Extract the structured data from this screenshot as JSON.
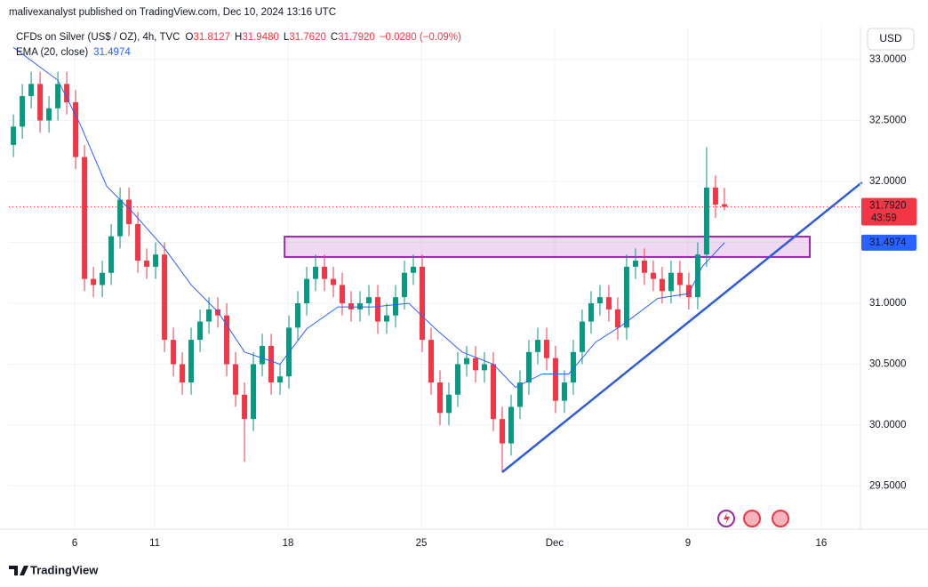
{
  "header": {
    "publisher": "malivexanalyst published on TradingView.com, Dec 10, 2024 13:16 UTC",
    "currency_button": "USD",
    "brand": "TradingView"
  },
  "chart_data": {
    "type": "candlestick",
    "title": "CFDs on Silver (US$ / OZ), 4h, TVC",
    "ohlc_legend": [
      {
        "label": "O",
        "value": "31.8127"
      },
      {
        "label": "H",
        "value": "31.9480"
      },
      {
        "label": "L",
        "value": "31.7620"
      },
      {
        "label": "C",
        "value": "31.7920"
      }
    ],
    "change": "−0.0280 (−0.09%)",
    "up_color": "#089981",
    "down_color": "#f23645",
    "x": [
      0.7,
      1.0333,
      1.3667,
      1.7,
      2.0333,
      2.3667,
      2.7,
      3.0333,
      3.3667,
      3.7,
      4.0333,
      4.3667,
      4.7,
      5.0333,
      5.3667,
      5.7,
      6.0333,
      6.3667,
      6.7,
      7.0333,
      7.3667,
      7.7,
      8.0333,
      8.3667,
      8.7,
      9.0333,
      9.3667,
      9.7,
      10.0333,
      10.3667,
      10.7,
      11.0333,
      11.3667,
      11.7,
      12.0333,
      12.3667,
      12.7,
      13.0333,
      13.3667,
      13.7,
      14.0333,
      14.3667,
      14.7,
      15.0333,
      15.3667,
      15.7,
      16.0333,
      16.3667,
      16.7,
      17.0333,
      17.3667,
      17.7,
      18.0333,
      18.3667,
      18.7,
      19.0333,
      19.3667,
      19.7,
      20.0333,
      20.3667,
      20.7,
      21.0333,
      21.3667,
      21.7,
      22.0333,
      22.3667,
      22.7,
      23.0333,
      23.3667,
      23.7,
      24.0333,
      24.3667,
      24.7,
      25.0333,
      25.3667,
      25.7,
      26.0333,
      26.3667,
      26.7,
      27.0333,
      27.3667
    ],
    "open": [
      32.3,
      32.45,
      32.7,
      32.8,
      32.5,
      32.6,
      32.8,
      32.65,
      32.2,
      31.2,
      31.15,
      31.25,
      31.55,
      31.85,
      31.65,
      31.35,
      31.3,
      31.4,
      30.7,
      30.5,
      30.35,
      30.7,
      30.85,
      30.95,
      30.9,
      30.5,
      30.25,
      30.05,
      30.5,
      30.65,
      30.35,
      30.4,
      30.8,
      31.0,
      31.2,
      31.3,
      31.2,
      31.15,
      31.0,
      30.95,
      31.0,
      31.05,
      30.85,
      30.9,
      31.05,
      31.25,
      31.3,
      30.7,
      30.35,
      30.1,
      30.25,
      30.5,
      30.55,
      30.45,
      30.5,
      30.05,
      29.85,
      30.15,
      30.35,
      30.6,
      30.7,
      30.55,
      30.2,
      30.35,
      30.6,
      30.85,
      31.0,
      31.05,
      30.95,
      30.8,
      31.3,
      31.35,
      31.25,
      31.2,
      31.1,
      31.25,
      31.15,
      31.05,
      31.4,
      31.95,
      31.8127
    ],
    "high": [
      32.55,
      32.8,
      32.9,
      32.9,
      32.7,
      32.9,
      32.9,
      32.75,
      32.3,
      31.3,
      31.35,
      31.65,
      31.95,
      31.95,
      31.75,
      31.45,
      31.5,
      31.5,
      30.8,
      30.6,
      30.8,
      30.95,
      31.05,
      31.05,
      31.0,
      30.6,
      30.35,
      30.6,
      30.75,
      30.75,
      30.5,
      30.9,
      31.1,
      31.3,
      31.4,
      31.4,
      31.3,
      31.25,
      31.1,
      31.1,
      31.15,
      31.15,
      31.0,
      31.15,
      31.35,
      31.4,
      31.4,
      30.8,
      30.45,
      30.35,
      30.6,
      30.65,
      30.65,
      30.6,
      30.6,
      30.15,
      30.25,
      30.45,
      30.7,
      30.8,
      30.8,
      30.65,
      30.45,
      30.7,
      30.95,
      31.1,
      31.15,
      31.15,
      31.05,
      31.4,
      31.45,
      31.45,
      31.35,
      31.3,
      31.35,
      31.35,
      31.25,
      31.5,
      32.28,
      32.05,
      31.948
    ],
    "low": [
      32.2,
      32.35,
      32.6,
      32.4,
      32.4,
      32.5,
      32.55,
      32.1,
      31.1,
      31.05,
      31.05,
      31.15,
      31.45,
      31.55,
      31.25,
      31.2,
      31.2,
      30.6,
      30.4,
      30.25,
      30.25,
      30.6,
      30.75,
      30.8,
      30.4,
      30.15,
      29.7,
      29.95,
      30.4,
      30.25,
      30.25,
      30.3,
      30.7,
      30.9,
      31.1,
      31.1,
      31.05,
      30.9,
      30.85,
      30.85,
      30.9,
      30.75,
      30.75,
      30.8,
      30.95,
      31.15,
      30.6,
      30.25,
      30.0,
      30.0,
      30.15,
      30.4,
      30.35,
      30.35,
      29.95,
      29.62,
      29.75,
      30.05,
      30.25,
      30.5,
      30.45,
      30.1,
      30.1,
      30.25,
      30.5,
      30.75,
      30.9,
      30.85,
      30.7,
      30.7,
      31.2,
      31.15,
      31.1,
      31.0,
      31.0,
      31.05,
      30.95,
      30.95,
      31.3,
      31.7,
      31.762
    ],
    "close": [
      32.45,
      32.7,
      32.8,
      32.5,
      32.6,
      32.8,
      32.65,
      32.2,
      31.2,
      31.15,
      31.25,
      31.55,
      31.85,
      31.65,
      31.35,
      31.3,
      31.4,
      30.7,
      30.5,
      30.35,
      30.7,
      30.85,
      30.95,
      30.9,
      30.5,
      30.25,
      30.05,
      30.5,
      30.65,
      30.35,
      30.4,
      30.8,
      31.0,
      31.2,
      31.3,
      31.2,
      31.15,
      31.0,
      30.95,
      31.0,
      31.05,
      30.85,
      30.9,
      31.05,
      31.25,
      31.3,
      30.7,
      30.35,
      30.1,
      30.25,
      30.5,
      30.55,
      30.45,
      30.5,
      30.05,
      29.85,
      30.15,
      30.35,
      30.6,
      30.7,
      30.55,
      30.2,
      30.35,
      30.6,
      30.85,
      31.0,
      31.05,
      30.95,
      30.8,
      31.3,
      31.35,
      31.25,
      31.2,
      31.1,
      31.25,
      31.15,
      31.05,
      31.4,
      31.95,
      31.81,
      31.792
    ],
    "ema": {
      "name": "EMA (20, close)",
      "last_label": "31.4974",
      "color": "#2962ff",
      "x": [
        0.7,
        2.37,
        3.2,
        4.2,
        5.2,
        6.37,
        7.37,
        8.37,
        9.37,
        10.7,
        11.7,
        12.87,
        14.2,
        15.53,
        16.53,
        17.53,
        18.7,
        19.53,
        20.53,
        21.53,
        22.53,
        23.53,
        24.87,
        26.03,
        26.53,
        27.37
      ],
      "values": [
        33.1,
        32.83,
        32.47,
        31.96,
        31.74,
        31.45,
        31.15,
        30.93,
        30.6,
        30.5,
        30.79,
        30.97,
        30.97,
        31.0,
        30.79,
        30.6,
        30.5,
        30.31,
        30.42,
        30.42,
        30.68,
        30.82,
        31.04,
        31.08,
        31.3,
        31.4974
      ]
    },
    "last_price": {
      "label": "31.7920",
      "value": 31.792,
      "countdown": "43:59"
    },
    "zone": {
      "x": [
        10.87,
        30.57
      ],
      "y": [
        31.38,
        31.547
      ],
      "fill": "rgba(206,147,216,0.35)",
      "stroke": "#9c27b0"
    },
    "trendline": {
      "x": [
        19.03,
        32.53
      ],
      "y": [
        29.613,
        31.993
      ],
      "color": "#2f5be0"
    },
    "xlim": [
      0.53,
      32.47
    ],
    "xticks": [
      {
        "value": 3,
        "label": "6"
      },
      {
        "value": 6,
        "label": "11"
      },
      {
        "value": 11,
        "label": "18"
      },
      {
        "value": 16,
        "label": "25"
      },
      {
        "value": 21,
        "label": "Dec"
      },
      {
        "value": 26,
        "label": "9"
      },
      {
        "value": 31,
        "label": "16"
      }
    ],
    "ylim": [
      29.146,
      33.27
    ],
    "yticks": [
      {
        "value": 29.5,
        "label": "29.5000"
      },
      {
        "value": 30,
        "label": "30.0000"
      },
      {
        "value": 30.5,
        "label": "30.5000"
      },
      {
        "value": 31,
        "label": "31.0000"
      },
      {
        "value": 31.5,
        "label": "31.5000"
      },
      {
        "value": 32,
        "label": "32.0000"
      },
      {
        "value": 32.5,
        "label": "32.5000"
      },
      {
        "value": 33,
        "label": "33.0000"
      }
    ],
    "grid": true
  }
}
